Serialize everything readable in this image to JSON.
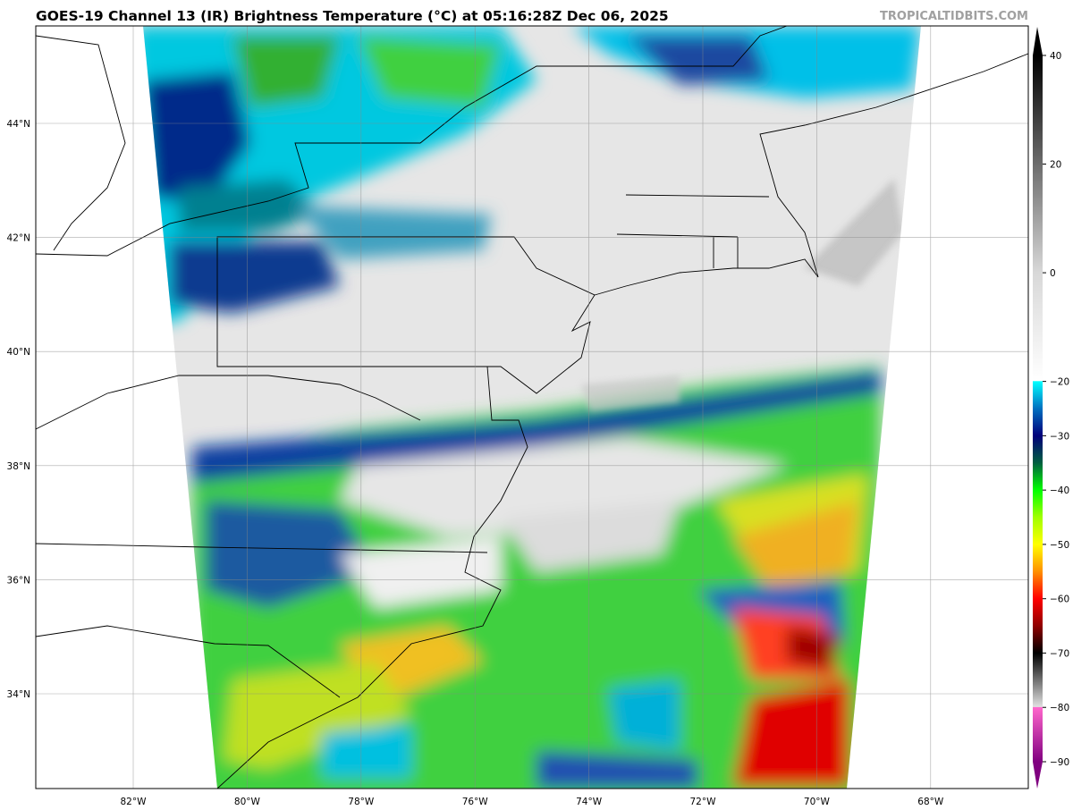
{
  "title": "GOES-19 Channel 13 (IR) Brightness Temperature (°C) at 05:16:28Z Dec 06, 2025",
  "watermark": "TROPICALTIDBITS.COM",
  "map": {
    "lon_labels": [
      "82°W",
      "80°W",
      "78°W",
      "76°W",
      "74°W",
      "72°W",
      "70°W",
      "68°W"
    ],
    "lat_labels": [
      "44°N",
      "42°N",
      "40°N",
      "38°N",
      "36°N",
      "34°N"
    ],
    "grid": true
  },
  "colorbar": {
    "min": -90,
    "max": 40,
    "tick_labels": [
      "40",
      "20",
      "0",
      "−20",
      "−30",
      "−40",
      "−50",
      "−60",
      "−70",
      "−80",
      "−90"
    ],
    "tick_values": [
      40,
      20,
      0,
      -20,
      -30,
      -40,
      -50,
      -60,
      -70,
      -80,
      -90
    ],
    "extend": "both",
    "colors": {
      "warm": "#000000",
      "cold_threshold": "#00ffff",
      "navy": "#00007a",
      "green": "#00ff00",
      "yellow": "#ffff00",
      "red": "#ff0000",
      "pink": "#ff66cc",
      "purple": "#800080"
    }
  }
}
